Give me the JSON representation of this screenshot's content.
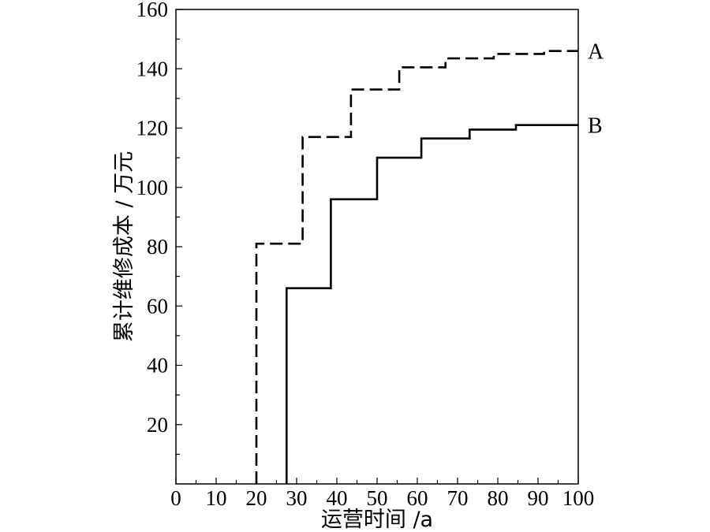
{
  "chart_data": {
    "type": "line",
    "step": true,
    "title": "",
    "xlabel": "运营时间 /a",
    "ylabel": "累计维修成本 / 万元",
    "xlim": [
      0,
      100
    ],
    "ylim": [
      0,
      160
    ],
    "xticks": [
      0,
      10,
      20,
      30,
      40,
      50,
      60,
      70,
      80,
      90,
      100
    ],
    "yticks": [
      20,
      40,
      60,
      80,
      100,
      120,
      140,
      160
    ],
    "grid": false,
    "series": [
      {
        "name": "A",
        "style": "dashed",
        "color": "#000000",
        "x": [
          20,
          20,
          31.5,
          31.5,
          43.5,
          43.5,
          55.5,
          55.5,
          67,
          67,
          79,
          79,
          91.5,
          91.5,
          100
        ],
        "y": [
          0,
          81,
          81,
          117,
          117,
          133,
          133,
          140.5,
          140.5,
          143.5,
          143.5,
          145,
          145,
          146,
          146
        ]
      },
      {
        "name": "B",
        "style": "solid",
        "color": "#000000",
        "x": [
          27.5,
          27.5,
          38.5,
          38.5,
          50,
          50,
          61,
          61,
          73,
          73,
          84.5,
          84.5,
          100
        ],
        "y": [
          0,
          66,
          66,
          96,
          96,
          110,
          110,
          116.5,
          116.5,
          119.5,
          119.5,
          121,
          121
        ]
      }
    ]
  }
}
